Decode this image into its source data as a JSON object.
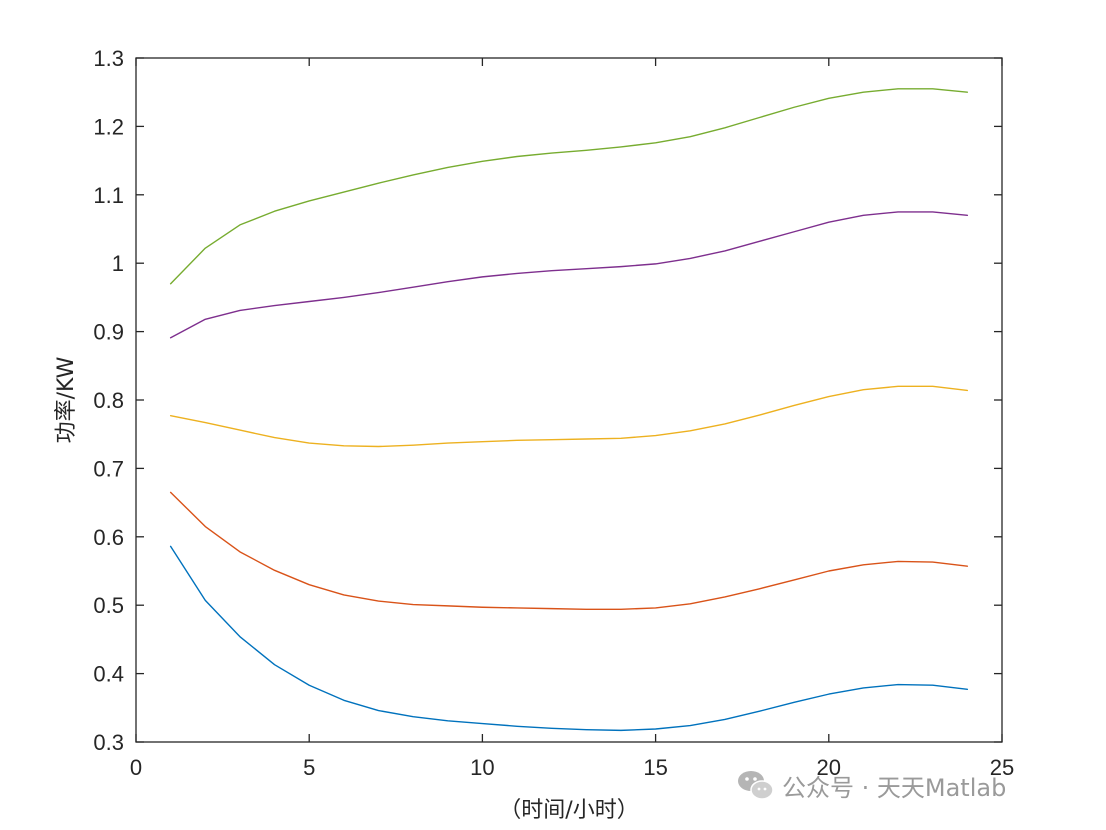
{
  "chart_data": {
    "type": "line",
    "title": "",
    "xlabel": "（时间/小时）",
    "ylabel": "功率/KW",
    "xlim": [
      0,
      25
    ],
    "ylim": [
      0.3,
      1.3
    ],
    "xticks": [
      0,
      5,
      10,
      15,
      20,
      25
    ],
    "yticks": [
      0.3,
      0.4,
      0.5,
      0.6,
      0.7,
      0.8,
      0.9,
      1,
      1.1,
      1.2,
      1.3
    ],
    "grid": false,
    "x": [
      1,
      2,
      3,
      4,
      5,
      6,
      7,
      8,
      9,
      10,
      11,
      12,
      13,
      14,
      15,
      16,
      17,
      18,
      19,
      20,
      21,
      22,
      23,
      24
    ],
    "series": [
      {
        "color": "#0072BD",
        "values": [
          0.586,
          0.507,
          0.454,
          0.413,
          0.383,
          0.361,
          0.346,
          0.337,
          0.331,
          0.327,
          0.323,
          0.32,
          0.318,
          0.317,
          0.319,
          0.324,
          0.333,
          0.345,
          0.358,
          0.37,
          0.379,
          0.384,
          0.383,
          0.377
        ]
      },
      {
        "color": "#D95319",
        "values": [
          0.665,
          0.615,
          0.578,
          0.551,
          0.53,
          0.515,
          0.506,
          0.501,
          0.499,
          0.497,
          0.496,
          0.495,
          0.494,
          0.494,
          0.496,
          0.502,
          0.512,
          0.524,
          0.537,
          0.55,
          0.559,
          0.564,
          0.563,
          0.557
        ]
      },
      {
        "color": "#EDB120",
        "values": [
          0.777,
          0.767,
          0.756,
          0.745,
          0.737,
          0.733,
          0.732,
          0.734,
          0.737,
          0.739,
          0.741,
          0.742,
          0.743,
          0.744,
          0.748,
          0.755,
          0.765,
          0.778,
          0.792,
          0.805,
          0.815,
          0.82,
          0.82,
          0.814
        ]
      },
      {
        "color": "#7E2F8E",
        "values": [
          0.891,
          0.918,
          0.931,
          0.938,
          0.944,
          0.95,
          0.957,
          0.965,
          0.973,
          0.98,
          0.985,
          0.989,
          0.992,
          0.995,
          0.999,
          1.007,
          1.018,
          1.032,
          1.046,
          1.06,
          1.07,
          1.075,
          1.075,
          1.07
        ]
      },
      {
        "color": "#77AC30",
        "values": [
          0.97,
          1.022,
          1.056,
          1.076,
          1.091,
          1.104,
          1.117,
          1.129,
          1.14,
          1.149,
          1.156,
          1.161,
          1.165,
          1.17,
          1.176,
          1.185,
          1.198,
          1.213,
          1.228,
          1.241,
          1.25,
          1.255,
          1.255,
          1.25
        ]
      }
    ]
  },
  "watermark": {
    "text": "公众号 · 天天Matlab",
    "icon": "wechat-icon"
  }
}
